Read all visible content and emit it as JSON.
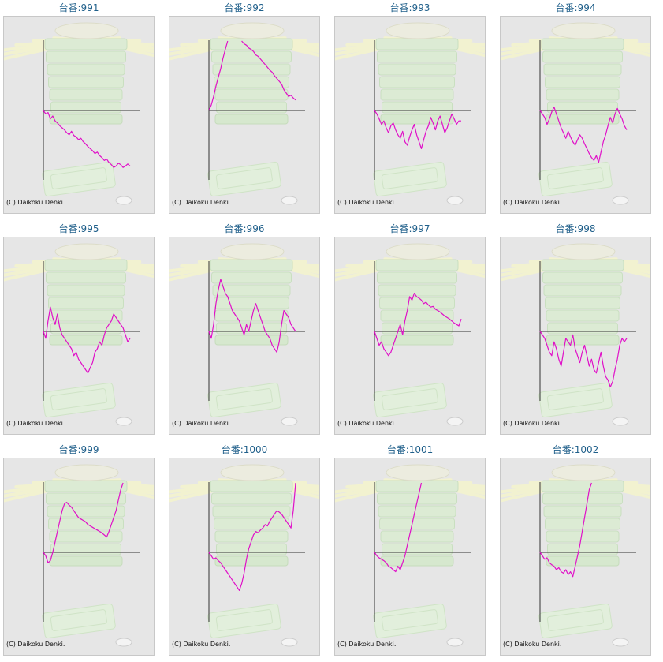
{
  "title_prefix": "台番:",
  "copyright": "(C) Daikoku Denki.",
  "colors": {
    "line": "#e010c8",
    "axis": "#333333",
    "background": "#e6e6e6",
    "title": "#1f5f8a"
  },
  "chart_data": [
    {
      "type": "line",
      "machine": "991",
      "ylim": [
        -100,
        100
      ],
      "y": [
        0,
        -5,
        -3,
        -12,
        -8,
        -15,
        -18,
        -22,
        -25,
        -28,
        -32,
        -35,
        -30,
        -36,
        -38,
        -42,
        -40,
        -45,
        -48,
        -52,
        -55,
        -58,
        -62,
        -60,
        -65,
        -68,
        -72,
        -70,
        -75,
        -78,
        -82,
        -80,
        -76,
        -78,
        -82,
        -80,
        -77,
        -80
      ]
    },
    {
      "type": "line",
      "machine": "992",
      "ylim": [
        -100,
        100
      ],
      "y": [
        0,
        8,
        20,
        35,
        48,
        60,
        75,
        88,
        100,
        null,
        null,
        null,
        null,
        null,
        100,
        96,
        94,
        90,
        88,
        85,
        80,
        78,
        74,
        70,
        66,
        62,
        58,
        55,
        50,
        46,
        42,
        38,
        30,
        25,
        20,
        22,
        18,
        15
      ]
    },
    {
      "type": "line",
      "machine": "993",
      "ylim": [
        -100,
        100
      ],
      "y": [
        0,
        -5,
        -12,
        -20,
        -15,
        -25,
        -32,
        -22,
        -18,
        -28,
        -35,
        -40,
        -30,
        -45,
        -50,
        -38,
        -28,
        -20,
        -35,
        -45,
        -55,
        -42,
        -30,
        -22,
        -10,
        -18,
        -28,
        -15,
        -8,
        -20,
        -32,
        -25,
        -15,
        -5,
        -12,
        -20,
        -15,
        -15
      ]
    },
    {
      "type": "line",
      "machine": "994",
      "ylim": [
        -100,
        100
      ],
      "y": [
        0,
        -5,
        -10,
        -20,
        -12,
        -2,
        5,
        -5,
        -15,
        -25,
        -32,
        -40,
        -30,
        -38,
        -45,
        -50,
        -42,
        -35,
        -40,
        -48,
        -55,
        -62,
        -68,
        -72,
        -65,
        -75,
        -60,
        -45,
        -35,
        -22,
        -10,
        -18,
        -5,
        3,
        -5,
        -12,
        -22,
        -28
      ]
    },
    {
      "type": "line",
      "machine": "995",
      "ylim": [
        -100,
        100
      ],
      "y": [
        0,
        -10,
        15,
        35,
        20,
        10,
        25,
        5,
        -5,
        -10,
        -15,
        -20,
        -25,
        -35,
        -30,
        -40,
        -45,
        -50,
        -55,
        -60,
        -52,
        -45,
        -30,
        -25,
        -15,
        -20,
        -5,
        5,
        10,
        15,
        25,
        20,
        15,
        10,
        5,
        -5,
        -15,
        -10
      ]
    },
    {
      "type": "line",
      "machine": "996",
      "ylim": [
        -100,
        100
      ],
      "y": [
        0,
        -10,
        10,
        40,
        60,
        75,
        65,
        55,
        50,
        40,
        30,
        25,
        20,
        15,
        5,
        -5,
        10,
        0,
        15,
        30,
        40,
        30,
        20,
        10,
        0,
        -5,
        -10,
        -20,
        -25,
        -30,
        -15,
        10,
        30,
        25,
        20,
        10,
        5,
        0
      ]
    },
    {
      "type": "line",
      "machine": "997",
      "ylim": [
        -100,
        100
      ],
      "y": [
        0,
        -10,
        -20,
        -15,
        -25,
        -30,
        -35,
        -30,
        -20,
        -10,
        0,
        10,
        -5,
        15,
        30,
        50,
        45,
        55,
        50,
        48,
        45,
        40,
        42,
        38,
        35,
        36,
        32,
        30,
        28,
        25,
        22,
        20,
        18,
        15,
        12,
        10,
        8,
        18
      ]
    },
    {
      "type": "line",
      "machine": "998",
      "ylim": [
        -100,
        100
      ],
      "y": [
        0,
        -5,
        -10,
        -20,
        -30,
        -35,
        -15,
        -25,
        -40,
        -50,
        -30,
        -10,
        -15,
        -20,
        -5,
        -25,
        -35,
        -45,
        -30,
        -20,
        -35,
        -50,
        -40,
        -55,
        -60,
        -45,
        -30,
        -50,
        -65,
        -70,
        -80,
        -72,
        -55,
        -40,
        -20,
        -10,
        -15,
        -10
      ]
    },
    {
      "type": "line",
      "machine": "999",
      "ylim": [
        -100,
        100
      ],
      "y": [
        0,
        -5,
        -15,
        -12,
        0,
        15,
        30,
        45,
        60,
        70,
        72,
        68,
        65,
        60,
        55,
        50,
        48,
        46,
        44,
        40,
        38,
        36,
        34,
        32,
        30,
        28,
        25,
        22,
        30,
        40,
        50,
        60,
        75,
        90,
        100,
        null,
        null,
        null
      ]
    },
    {
      "type": "line",
      "machine": "1000",
      "ylim": [
        -100,
        100
      ],
      "y": [
        0,
        -5,
        -10,
        -8,
        -12,
        -15,
        -20,
        -25,
        -30,
        -35,
        -40,
        -45,
        -50,
        -55,
        -45,
        -30,
        -10,
        5,
        15,
        25,
        30,
        28,
        32,
        35,
        40,
        38,
        45,
        50,
        55,
        60,
        58,
        55,
        50,
        45,
        40,
        35,
        60,
        100
      ]
    },
    {
      "type": "line",
      "machine": "1001",
      "ylim": [
        -100,
        100
      ],
      "y": [
        0,
        -5,
        -8,
        -10,
        -12,
        -15,
        -20,
        -22,
        -25,
        -28,
        -20,
        -25,
        -15,
        -5,
        10,
        25,
        40,
        55,
        70,
        85,
        100,
        null,
        null,
        null,
        null,
        null,
        null,
        null,
        null,
        null,
        null,
        null,
        null,
        null,
        null,
        null,
        null,
        null
      ]
    },
    {
      "type": "line",
      "machine": "1002",
      "ylim": [
        -100,
        100
      ],
      "y": [
        0,
        -5,
        -10,
        -8,
        -15,
        -18,
        -20,
        -25,
        -22,
        -28,
        -30,
        -25,
        -32,
        -28,
        -35,
        -20,
        -5,
        10,
        30,
        50,
        70,
        90,
        100,
        null,
        null,
        null,
        null,
        null,
        null,
        null,
        null,
        null,
        null,
        null,
        null,
        null,
        null,
        null
      ]
    }
  ]
}
